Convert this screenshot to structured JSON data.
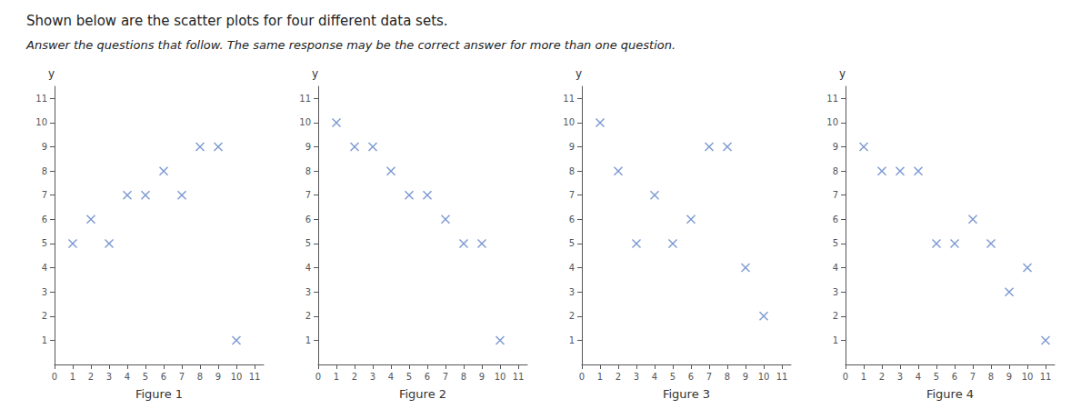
{
  "chart_data": [
    {
      "type": "scatter",
      "title": "Shown below are the scatter plots for four different data sets.",
      "subtitle": "Answer the questions that follow. The same response may be the correct answer for more than one question.",
      "x": [
        1,
        2,
        3,
        4,
        5,
        6,
        7,
        8,
        9,
        10
      ],
      "values": [
        5,
        6,
        5,
        7,
        7,
        8,
        7,
        9,
        9,
        1
      ],
      "x_label": "Figure 1",
      "y_label": "y",
      "color": "#5b7fc7",
      "marker": "x",
      "grid": false,
      "xlim": [
        0,
        11.5
      ],
      "ylim": [
        0,
        11.5
      ],
      "xticks": [
        0,
        1,
        2,
        3,
        4,
        5,
        6,
        7,
        8,
        9,
        10,
        11
      ],
      "yticks": [
        1,
        2,
        3,
        4,
        5,
        6,
        7,
        8,
        9,
        10,
        11
      ]
    },
    {
      "type": "scatter",
      "x": [
        1,
        2,
        3,
        4,
        5,
        6,
        7,
        8,
        9,
        10
      ],
      "values": [
        10,
        9,
        9,
        8,
        7,
        7,
        6,
        5,
        5,
        1
      ],
      "x_label": "Figure 2",
      "y_label": "y",
      "color": "#5b7fc7",
      "marker": "x",
      "grid": false,
      "xlim": [
        0,
        11.5
      ],
      "ylim": [
        0,
        11.5
      ],
      "xticks": [
        0,
        1,
        2,
        3,
        4,
        5,
        6,
        7,
        8,
        9,
        10,
        11
      ],
      "yticks": [
        1,
        2,
        3,
        4,
        5,
        6,
        7,
        8,
        9,
        10,
        11
      ]
    },
    {
      "type": "scatter",
      "x": [
        1,
        2,
        3,
        5,
        6,
        7,
        8,
        9,
        10,
        4
      ],
      "values": [
        10,
        8,
        5,
        5,
        6,
        9,
        9,
        4,
        2,
        7
      ],
      "x_label": "Figure 3",
      "y_label": "y",
      "color": "#5b7fc7",
      "marker": "x",
      "grid": false,
      "xlim": [
        0,
        11.5
      ],
      "ylim": [
        0,
        11.5
      ],
      "xticks": [
        0,
        1,
        2,
        3,
        4,
        5,
        6,
        7,
        8,
        9,
        10,
        11
      ],
      "yticks": [
        1,
        2,
        3,
        4,
        5,
        6,
        7,
        8,
        9,
        10,
        11
      ]
    },
    {
      "type": "scatter",
      "x": [
        1,
        2,
        3,
        4,
        5,
        6,
        7,
        8,
        9,
        10,
        11
      ],
      "values": [
        9,
        8,
        8,
        8,
        5,
        5,
        6,
        5,
        3,
        4,
        1
      ],
      "x_label": "Figure 4",
      "y_label": "y",
      "color": "#5b7fc7",
      "marker": "x",
      "grid": false,
      "xlim": [
        0,
        11.5
      ],
      "ylim": [
        0,
        11.5
      ],
      "xticks": [
        0,
        1,
        2,
        3,
        4,
        5,
        6,
        7,
        8,
        9,
        10,
        11
      ],
      "yticks": [
        1,
        2,
        3,
        4,
        5,
        6,
        7,
        8,
        9,
        10,
        11
      ]
    }
  ]
}
